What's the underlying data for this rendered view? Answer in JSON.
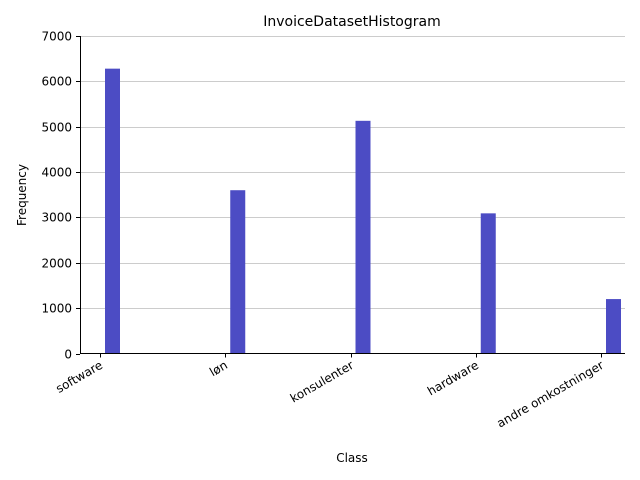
{
  "chart_data": {
    "type": "bar",
    "title": "InvoiceDatasetHistogram",
    "xlabel": "Class",
    "ylabel": "Frequency",
    "categories": [
      "software",
      "løn",
      "konsulenter",
      "hardware",
      "andre omkostninger"
    ],
    "values": [
      6280,
      3600,
      5130,
      3090,
      1200
    ],
    "ylim": [
      0,
      7000
    ],
    "yticks": [
      0,
      1000,
      2000,
      3000,
      4000,
      5000,
      6000,
      7000
    ],
    "grid": "horizontal",
    "bar_color": "#4c4cc4",
    "grid_color": "#cccccc"
  }
}
